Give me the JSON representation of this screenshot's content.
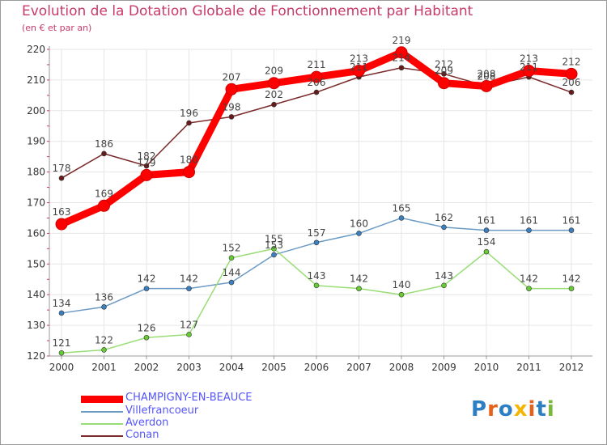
{
  "title": "Evolution de la Dotation Globale de Fonctionnement par Habitant",
  "subtitle": "(en € et par an)",
  "logo_text": "Proxiti",
  "colors": {
    "title": "#c83a6a",
    "axis": "#9a9a9a",
    "grid": "#e6e6e6",
    "tick_mark": "#cc3366"
  },
  "chart_data": {
    "type": "line",
    "x": [
      "2000",
      "2001",
      "2002",
      "2003",
      "2004",
      "2005",
      "2006",
      "2007",
      "2008",
      "2009",
      "2010",
      "2011",
      "2012"
    ],
    "ylim": [
      120,
      220
    ],
    "yticks": [
      120,
      130,
      140,
      150,
      160,
      170,
      180,
      190,
      200,
      210,
      220
    ],
    "grid": true,
    "legend_position": "bottom-left",
    "series": [
      {
        "name": "CHAMPIGNY-EN-BEAUCE",
        "color": "#ff0000",
        "label_color": "#5555ff",
        "marker": "#ff0000",
        "values": [
          163,
          169,
          179,
          180,
          207,
          209,
          211,
          213,
          219,
          209,
          208,
          213,
          212
        ],
        "thick": true
      },
      {
        "name": "Villefrancoeur",
        "color": "#6b9ac4",
        "label_color": "#5555ff",
        "marker": "#3a7fc0",
        "values": [
          134,
          136,
          142,
          142,
          144,
          153,
          157,
          160,
          165,
          162,
          161,
          161,
          161
        ],
        "thick": false
      },
      {
        "name": "Averdon",
        "color": "#99dd77",
        "label_color": "#5555ff",
        "marker": "#66cc33",
        "values": [
          121,
          122,
          126,
          127,
          152,
          155,
          143,
          142,
          140,
          143,
          154,
          142,
          142
        ],
        "thick": false
      },
      {
        "name": "Conan",
        "color": "#7a2a2a",
        "label_color": "#5555ff",
        "marker": "#661a1a",
        "values": [
          178,
          186,
          182,
          196,
          198,
          202,
          206,
          211,
          214,
          212,
          208,
          211,
          206
        ],
        "thick": false
      }
    ]
  }
}
